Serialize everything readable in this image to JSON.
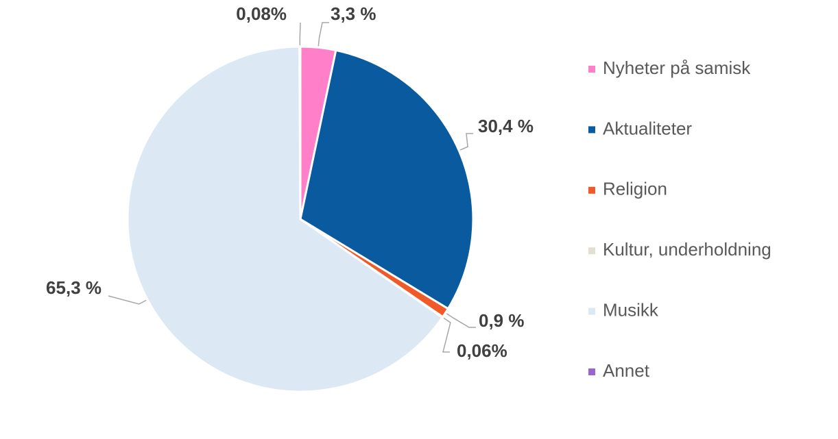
{
  "chart_data": {
    "type": "pie",
    "categories": [
      "Nyheter på samisk",
      "Aktualiteter",
      "Religion",
      "Kultur, underholdning",
      "Musikk",
      "Annet"
    ],
    "values": [
      3.3,
      30.4,
      0.9,
      0.06,
      65.3,
      0.08
    ],
    "value_labels": [
      "3,3 %",
      "30,4 %",
      "0,9 %",
      "0,06%",
      "65,3 %",
      "0,08%"
    ],
    "colors": [
      "#ff80c8",
      "#0a5aa0",
      "#f05a28",
      "#e2dfd2",
      "#dce8f3",
      "#9966cc"
    ],
    "legend": "right"
  }
}
